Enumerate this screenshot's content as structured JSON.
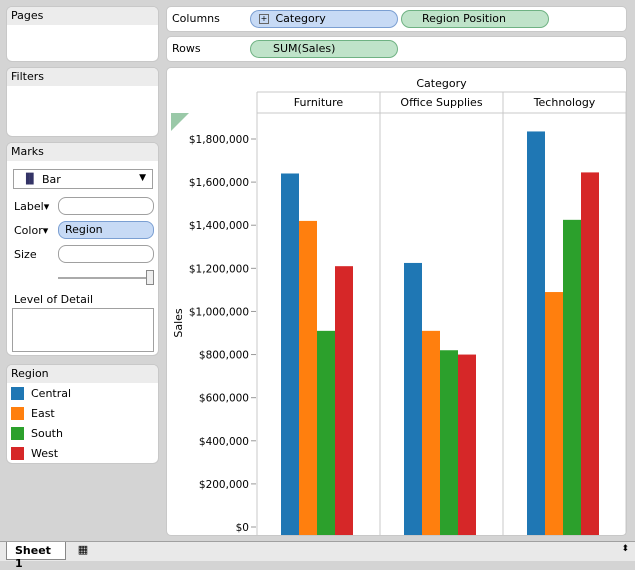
{
  "panels": {
    "pages": {
      "title": "Pages"
    },
    "filters": {
      "title": "Filters"
    },
    "marks": {
      "title": "Marks",
      "mark_type": "Bar",
      "label_label": "Label",
      "color_label": "Color",
      "color_pill": "Region",
      "size_label": "Size",
      "detail_label": "Level of Detail"
    },
    "legend": {
      "title": "Region",
      "items": [
        {
          "label": "Central",
          "color": "#1f77b4"
        },
        {
          "label": "East",
          "color": "#ff7f0e"
        },
        {
          "label": "South",
          "color": "#2ca02c"
        },
        {
          "label": "West",
          "color": "#d62728"
        }
      ]
    }
  },
  "shelves": {
    "columns_label": "Columns",
    "columns_pills": [
      "Category",
      "Region Position"
    ],
    "rows_label": "Rows",
    "rows_pills": [
      "SUM(Sales)"
    ]
  },
  "chart_data": {
    "type": "bar",
    "title": "Category",
    "ylabel": "Sales",
    "categories": [
      "Furniture",
      "Office Supplies",
      "Technology"
    ],
    "series": [
      {
        "name": "Central",
        "values": [
          1640000,
          1225000,
          1835000
        ]
      },
      {
        "name": "East",
        "values": [
          1420000,
          910000,
          1090000
        ]
      },
      {
        "name": "South",
        "values": [
          910000,
          820000,
          1425000
        ]
      },
      {
        "name": "West",
        "values": [
          1210000,
          800000,
          1645000
        ]
      }
    ],
    "ylim": [
      0,
      1900000
    ],
    "yticks": [
      "$0",
      "$200,000",
      "$400,000",
      "$600,000",
      "$800,000",
      "$1,000,000",
      "$1,200,000",
      "$1,400,000",
      "$1,600,000",
      "$1,800,000"
    ],
    "grid": false
  },
  "tabs": {
    "sheet": "Sheet 1"
  }
}
